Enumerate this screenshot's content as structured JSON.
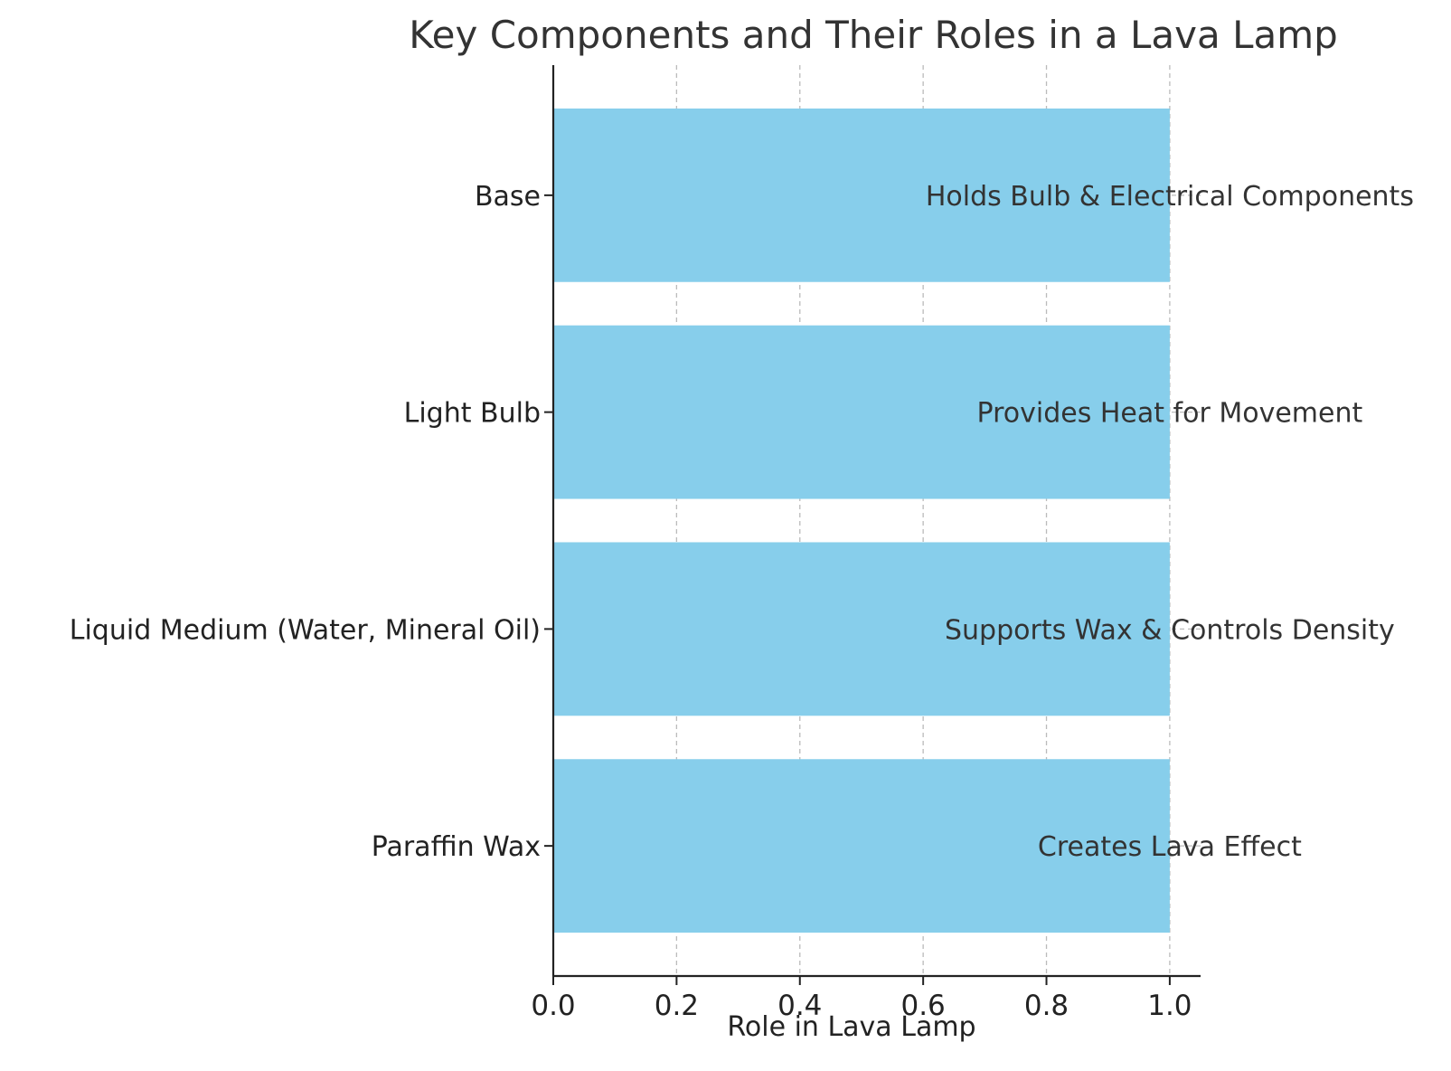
{
  "chart_data": {
    "type": "bar",
    "orientation": "horizontal",
    "title": "Key Components and Their Roles in a Lava Lamp",
    "xlabel": "Role in Lava Lamp",
    "ylabel": "",
    "categories": [
      "Paraffin Wax",
      "Liquid Medium (Water, Mineral Oil)",
      "Light Bulb",
      "Base"
    ],
    "values": [
      1,
      1,
      1,
      1
    ],
    "annotations": [
      "Creates Lava Effect",
      "Supports Wax & Controls Density",
      "Provides Heat for Movement",
      "Holds Bulb & Electrical Components"
    ],
    "xlim": [
      0,
      1.05
    ],
    "xticks": [
      0.0,
      0.2,
      0.4,
      0.6,
      0.8,
      1.0
    ],
    "xtick_labels": [
      "0.0",
      "0.2",
      "0.4",
      "0.6",
      "0.8",
      "1.0"
    ],
    "grid": true,
    "bar_color": "#87CEEB"
  }
}
